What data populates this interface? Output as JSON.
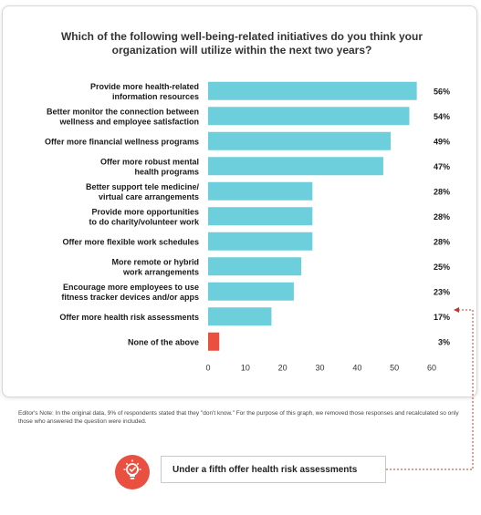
{
  "title_lines": [
    "Which of the following well-being-related initiatives do you think your",
    "organization will utilize within the next two years?"
  ],
  "chart_data": {
    "type": "bar",
    "orientation": "horizontal",
    "categories": [
      [
        "Provide more health-related",
        "information resources"
      ],
      [
        "Better monitor the connection between",
        "wellness and employee satisfaction"
      ],
      [
        "Offer more financial wellness programs"
      ],
      [
        "Offer more robust mental",
        "health programs"
      ],
      [
        "Better support tele medicine/",
        "virtual care arrangements"
      ],
      [
        "Provide more opportunities",
        "to do charity/volunteer work"
      ],
      [
        "Offer more flexible work schedules"
      ],
      [
        "More remote or hybrid",
        "work arrangements"
      ],
      [
        "Encourage more employees to use",
        "fitness tracker devices and/or apps"
      ],
      [
        "Offer more health risk assessments"
      ],
      [
        "None of the above"
      ]
    ],
    "values": [
      56,
      54,
      49,
      47,
      28,
      28,
      28,
      25,
      23,
      17,
      3
    ],
    "value_labels": [
      "56%",
      "54%",
      "49%",
      "47%",
      "28%",
      "28%",
      "28%",
      "25%",
      "23%",
      "17%",
      "3%"
    ],
    "xlim": [
      0,
      60
    ],
    "xticks": [
      "0",
      "10",
      "20",
      "30",
      "40",
      "50",
      "60"
    ],
    "colors": {
      "bar": "#6dcfdc",
      "highlight": "#e9503f",
      "connector": "#c0392b"
    },
    "highlight_category": "None of the above"
  },
  "note": "Editor's Note: In the original data, 9% of respondents stated that they \"don't know.\" For the purpose of this graph, we removed those responses and recalculated so only those who answered the question were included.",
  "callout": {
    "text": "Under a fifth offer health risk assessments",
    "icon": "lightbulb-icon"
  }
}
